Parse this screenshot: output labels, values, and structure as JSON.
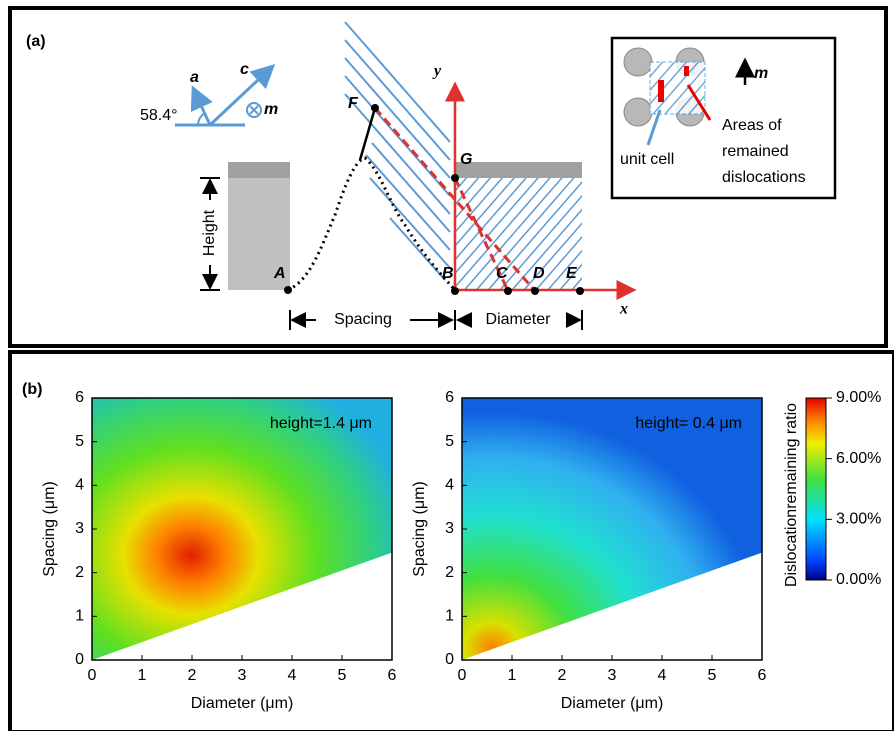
{
  "panel_a": {
    "label": "(a)",
    "angle": "58.4°",
    "vec_a": "a",
    "vec_c": "c",
    "vec_m": "m",
    "axis_y": "y",
    "axis_x": "x",
    "points": [
      "A",
      "B",
      "C",
      "D",
      "E",
      "F",
      "G"
    ],
    "height": "Height",
    "spacing": "Spacing",
    "diameter": "Diameter",
    "inset": {
      "m": "m",
      "unit_cell": "unit cell",
      "areas": [
        "Areas of",
        "remained",
        "dislocations"
      ]
    }
  },
  "panel_b": {
    "label": "(b)",
    "colorbar": {
      "label": "Dislocationremaining ratio",
      "lim": [
        0,
        9
      ],
      "ticks": [
        {
          "value": 0,
          "label": "0.00%"
        },
        {
          "value": 3,
          "label": "3.00%"
        },
        {
          "value": 6,
          "label": "6.00%"
        },
        {
          "value": 9,
          "label": "9.00%"
        }
      ]
    }
  },
  "chart_data": [
    {
      "type": "contour",
      "annotation": "height=1.4 μm",
      "x_label": "Diameter (μm)",
      "y_label": "Spacing (μm)",
      "xlim": [
        0,
        6
      ],
      "ylim": [
        0,
        6
      ],
      "xticks": [
        0,
        1,
        2,
        3,
        4,
        5,
        6
      ],
      "yticks": [
        0,
        1,
        2,
        3,
        4,
        5,
        6
      ]
    },
    {
      "type": "contour",
      "annotation": "height= 0.4 μm",
      "x_label": "Diameter (μm)",
      "y_label": "Spacing (μm)",
      "xlim": [
        0,
        6
      ],
      "ylim": [
        0,
        6
      ],
      "xticks": [
        0,
        1,
        2,
        3,
        4,
        5,
        6
      ],
      "yticks": [
        0,
        1,
        2,
        3,
        4,
        5,
        6
      ]
    }
  ]
}
